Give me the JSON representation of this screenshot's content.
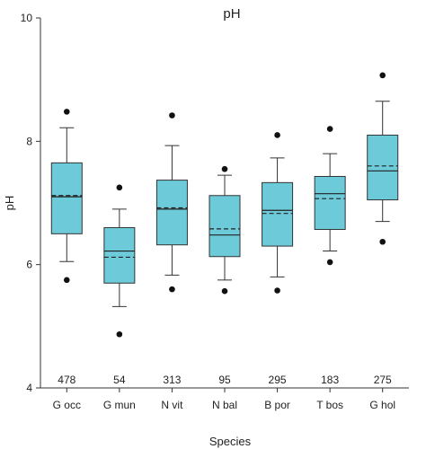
{
  "chart_data": {
    "type": "box",
    "title": "pH",
    "xlabel": "Species",
    "ylabel": "pH",
    "ylim": [
      4,
      10
    ],
    "yticks": [
      4,
      6,
      8,
      10
    ],
    "grid": false,
    "box_color": "#6dcad9",
    "categories": [
      "G occ",
      "G mun",
      "N vit",
      "N bal",
      "B por",
      "T bos",
      "G hol"
    ],
    "boxes": [
      {
        "name": "G occ",
        "count": "478",
        "whisker_low": 6.05,
        "q1": 6.5,
        "median": 7.1,
        "mean": 7.12,
        "q3": 7.65,
        "whisker_high": 8.22,
        "outliers": [
          5.75,
          8.48
        ]
      },
      {
        "name": "G mun",
        "count": "54",
        "whisker_low": 5.32,
        "q1": 5.7,
        "median": 6.22,
        "mean": 6.12,
        "q3": 6.6,
        "whisker_high": 6.9,
        "outliers": [
          4.87,
          7.25
        ]
      },
      {
        "name": "N vit",
        "count": "313",
        "whisker_low": 5.83,
        "q1": 6.32,
        "median": 6.9,
        "mean": 6.92,
        "q3": 7.37,
        "whisker_high": 7.93,
        "outliers": [
          5.6,
          8.42
        ]
      },
      {
        "name": "N bal",
        "count": "95",
        "whisker_low": 5.75,
        "q1": 6.13,
        "median": 6.48,
        "mean": 6.58,
        "q3": 7.12,
        "whisker_high": 7.45,
        "outliers": [
          5.57,
          7.55
        ]
      },
      {
        "name": "B por",
        "count": "295",
        "whisker_low": 5.8,
        "q1": 6.3,
        "median": 6.88,
        "mean": 6.83,
        "q3": 7.33,
        "whisker_high": 7.73,
        "outliers": [
          5.58,
          8.1
        ]
      },
      {
        "name": "T bos",
        "count": "183",
        "whisker_low": 6.22,
        "q1": 6.57,
        "median": 7.15,
        "mean": 7.07,
        "q3": 7.43,
        "whisker_high": 7.8,
        "outliers": [
          6.04,
          8.2
        ]
      },
      {
        "name": "G hol",
        "count": "275",
        "whisker_low": 6.7,
        "q1": 7.05,
        "median": 7.52,
        "mean": 7.6,
        "q3": 8.1,
        "whisker_high": 8.65,
        "outliers": [
          6.37,
          9.07
        ]
      }
    ]
  }
}
